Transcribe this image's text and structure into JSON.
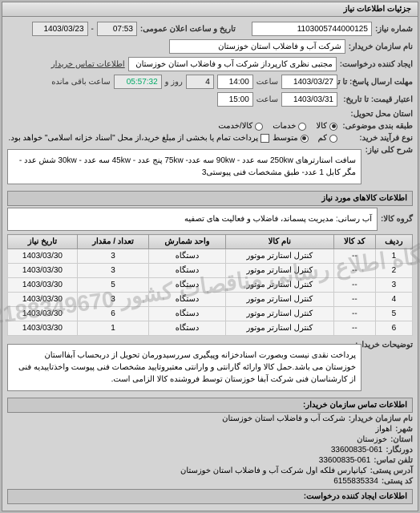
{
  "panel_title": "جزئیات اطلاعات نیاز",
  "top": {
    "req_no_label": "شماره نیاز:",
    "req_no": "1103005744000125",
    "announce_label": "تاریخ و ساعت اعلان عمومی:",
    "announce_time": "07:53",
    "announce_date": "1403/03/23",
    "buyer_org_label": "نام سازمان خریدار:",
    "buyer_org": "شرکت آب و فاضلاب استان خوزستان",
    "creator_label": "ایجاد کننده درخواست:",
    "creator": "مجتبی نظری کارپرداز شرکت آب و فاضلاب استان خوزستان",
    "contact_label": "اطلاعات تماس خریدار"
  },
  "deadlines": {
    "send_label": "مهلت ارسال پاسخ: تا تاریخ:",
    "send_date": "1403/03/27",
    "send_time_label": "ساعت",
    "send_time": "14:00",
    "remain_days": "4",
    "remain_days_label": "روز و",
    "remain_time": "05:57:32",
    "remain_suffix": "ساعت باقی مانده",
    "price_label": "اعتبار قیمت: تا تاریخ:",
    "price_date": "1403/03/31",
    "price_time_label": "ساعت",
    "price_time": "15:00"
  },
  "location": {
    "deliver_label": "استان محل تحویل:",
    "pack_label": "طبقه بندی موضوعی:",
    "pay_label": "نوع فرآیند خرید:"
  },
  "radios": {
    "opt_kala": "کالا",
    "opt_khadamat": "خدمات",
    "opt_both": "کالا/خدمت",
    "opt_low": "کم",
    "opt_med": "متوسط",
    "pay_note": "پرداخت تمام یا بخشی از مبلغ خرید،از محل \"اسناد خزانه اسلامی\" خواهد بود."
  },
  "desc": {
    "label": "شرح کلی نیاز:",
    "text": "سافت استارترهای 250kw سه عدد - 90kw سه عدد- 75kw پنج عدد - 45kw سه عدد - 30kw شش عدد - مگر کابل 1 عدد- طبق مشخصات فنی پیوستی3"
  },
  "cats": {
    "header": "اطلاعات کالاهای مورد نیاز",
    "group_label": "گروه کالا:",
    "group_text": "آب رسانی: مدیریت پسماند، فاضلاب و فعالیت های تصفیه"
  },
  "table": {
    "cols": [
      "ردیف",
      "کد کالا",
      "نام کالا",
      "واحد شمارش",
      "تعداد / مقدار",
      "تاریخ نیاز"
    ],
    "rows": [
      [
        "1",
        "--",
        "کنترل استارتر موتور",
        "دستگاه",
        "3",
        "1403/03/30"
      ],
      [
        "2",
        "--",
        "کنترل استارتر موتور",
        "دستگاه",
        "3",
        "1403/03/30"
      ],
      [
        "3",
        "--",
        "کنترل استارتر موتور",
        "دستگاه",
        "5",
        "1403/03/30"
      ],
      [
        "4",
        "--",
        "کنترل استارتر موتور",
        "دستگاه",
        "3",
        "1403/03/30"
      ],
      [
        "5",
        "--",
        "کنترل استارتر موتور",
        "دستگاه",
        "6",
        "1403/03/30"
      ],
      [
        "6",
        "--",
        "کنترل استارتر موتور",
        "دستگاه",
        "1",
        "1403/03/30"
      ]
    ],
    "watermark": "پایگاه اطلاع رسانی مناقصات کشور 02188349670"
  },
  "buyer_note": {
    "label": "توضیحات خریدار:",
    "text": "پرداخت نقدی نیست وبصورت اسنادخزانه وپیگیری سررسیدورمان تحویل از دربحساب آبفااستان خوزستان می باشد.حمل کالا وارائه گارانتی و وارانتی معتبروتایید مشخصات فنی پیوست واخذتاییدیه فنی از کارشناسان فنی شرکت آبفا خوزستان توسط فروشنده کالا الزامی است."
  },
  "footer": {
    "header": "اطلاعات تماس سازمان خریدار:",
    "org_label": "نام سازمان خریدار:",
    "org": "شرکت آب و فاضلاب استان خوزستان",
    "city_label": "شهر:",
    "city": "اهواز",
    "province_label": "استان:",
    "province": "خوزستان",
    "tel_label": "دورنگار:",
    "tel": "33600835-061",
    "fax_label": "تلفن تماس:",
    "fax": "33600835-061",
    "addr_label": "آدرس پستی:",
    "addr": "کیانپارس فلکه اول شرکت آب و فاضلاب استان خوزستان",
    "post_label": "کد پستی:",
    "post": "6155835334",
    "creator2_label": "اطلاعات ایجاد کننده درخواست:"
  }
}
